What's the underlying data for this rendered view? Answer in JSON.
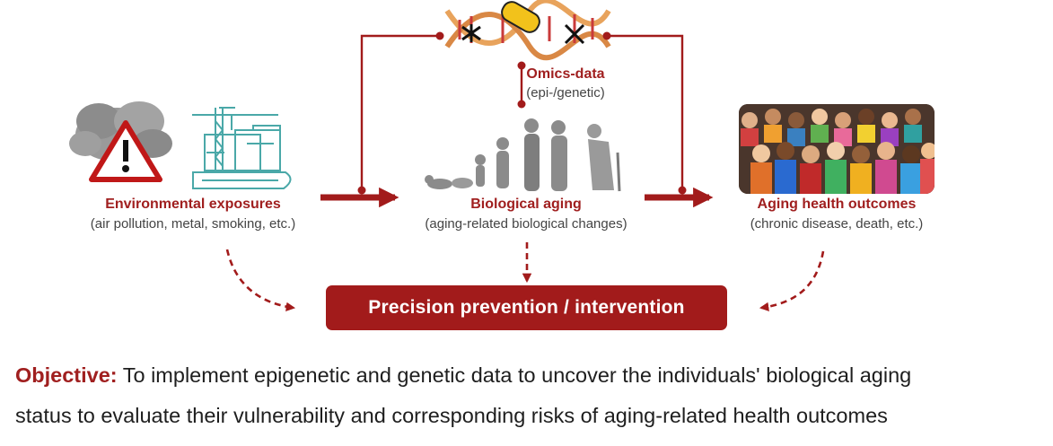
{
  "nodes": {
    "omics": {
      "title": "Omics-data",
      "subtitle": "(epi-/genetic)"
    },
    "environment": {
      "title": "Environmental exposures",
      "subtitle": "(air pollution, metal, smoking, etc.)"
    },
    "aging": {
      "title": "Biological aging",
      "subtitle": "(aging-related biological changes)"
    },
    "outcomes": {
      "title": "Aging health outcomes",
      "subtitle": "(chronic disease, death, etc.)"
    }
  },
  "target": {
    "label": "Precision prevention / intervention"
  },
  "objective": {
    "keyword": "Objective:",
    "line1": "To implement epigenetic and genetic data to uncover the individuals' biological aging",
    "line2": "status to evaluate their vulnerability and corresponding risks of aging-related health outcomes"
  },
  "colors": {
    "accent": "#a21b1b",
    "box": "#a21b1b",
    "icon_teal": "#4aa8a8"
  },
  "icons": [
    "storm-cloud-warning-icon",
    "factory-crane-train-icon",
    "dna-helix-icon",
    "human-evolution-silhouettes-icon",
    "crowd-photo"
  ]
}
